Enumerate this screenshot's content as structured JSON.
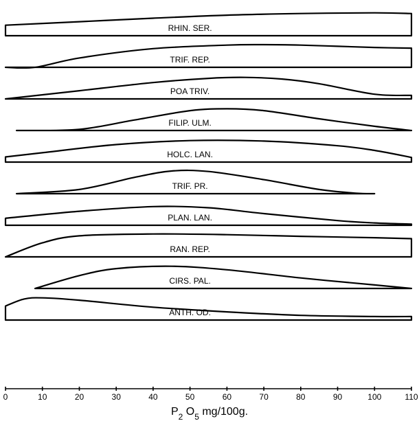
{
  "chart_data": {
    "type": "area",
    "xlabel_parts": [
      "P",
      "2",
      " O",
      "5",
      "  mg/100g."
    ],
    "xlim": [
      0,
      110
    ],
    "x_ticks": [
      0,
      10,
      20,
      30,
      40,
      50,
      60,
      70,
      80,
      90,
      100,
      110
    ],
    "grid": false,
    "legend": "none",
    "series": [
      {
        "name": "RHIN. SER.",
        "x": [
          0,
          20,
          40,
          60,
          80,
          100,
          110
        ],
        "y": [
          0.45,
          0.6,
          0.75,
          0.88,
          0.95,
          0.98,
          0.95
        ]
      },
      {
        "name": "TRIF. REP.",
        "x": [
          0,
          8,
          20,
          40,
          60,
          70,
          80,
          90,
          100,
          110
        ],
        "y": [
          0.0,
          0.0,
          0.4,
          0.8,
          0.95,
          0.97,
          0.95,
          0.9,
          0.85,
          0.82
        ]
      },
      {
        "name": "POA TRIV.",
        "x": [
          0,
          20,
          40,
          55,
          65,
          75,
          85,
          100,
          110
        ],
        "y": [
          0.0,
          0.35,
          0.7,
          0.88,
          0.92,
          0.85,
          0.65,
          0.2,
          0.15
        ]
      },
      {
        "name": "FILIP. ULM.",
        "x": [
          3,
          20,
          35,
          50,
          60,
          70,
          85,
          100,
          110
        ],
        "y": [
          0.0,
          0.05,
          0.45,
          0.85,
          0.93,
          0.85,
          0.5,
          0.18,
          0.0
        ]
      },
      {
        "name": "HOLC. LAN.",
        "x": [
          0,
          10,
          30,
          50,
          70,
          90,
          100,
          110
        ],
        "y": [
          0.22,
          0.4,
          0.75,
          0.92,
          0.9,
          0.7,
          0.5,
          0.2
        ]
      },
      {
        "name": "TRIF. PR.",
        "x": [
          3,
          20,
          35,
          45,
          55,
          70,
          85,
          95,
          100
        ],
        "y": [
          0.0,
          0.18,
          0.7,
          0.97,
          0.95,
          0.6,
          0.18,
          0.02,
          0.0
        ]
      },
      {
        "name": "PLAN. LAN.",
        "x": [
          0,
          20,
          40,
          55,
          70,
          90,
          100,
          110
        ],
        "y": [
          0.3,
          0.6,
          0.8,
          0.75,
          0.5,
          0.2,
          0.1,
          0.05
        ]
      },
      {
        "name": "RAN. REP.",
        "x": [
          0,
          10,
          20,
          40,
          60,
          80,
          100,
          110
        ],
        "y": [
          0.0,
          0.6,
          0.9,
          0.98,
          0.95,
          0.88,
          0.82,
          0.78
        ]
      },
      {
        "name": "CIRS. PAL.",
        "x": [
          8,
          20,
          30,
          45,
          60,
          80,
          100,
          110
        ],
        "y": [
          0.0,
          0.55,
          0.85,
          0.95,
          0.8,
          0.45,
          0.15,
          0.0
        ]
      },
      {
        "name": "ANTH. OD.",
        "x": [
          0,
          5,
          10,
          20,
          40,
          60,
          80,
          100,
          110
        ],
        "y": [
          0.6,
          0.9,
          0.95,
          0.85,
          0.55,
          0.35,
          0.2,
          0.15,
          0.15
        ]
      }
    ]
  }
}
